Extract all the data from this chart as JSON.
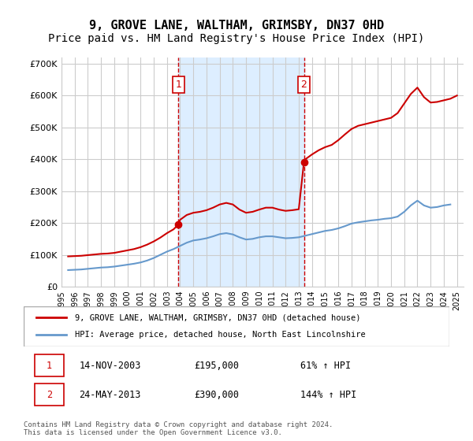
{
  "title": "9, GROVE LANE, WALTHAM, GRIMSBY, DN37 0HD",
  "subtitle": "Price paid vs. HM Land Registry's House Price Index (HPI)",
  "title_fontsize": 11,
  "subtitle_fontsize": 10,
  "background_color": "#ffffff",
  "plot_bg_color": "#ffffff",
  "grid_color": "#cccccc",
  "red_color": "#cc0000",
  "blue_color": "#6699cc",
  "shaded_color": "#ddeeff",
  "purchase1_x": 2003.87,
  "purchase1_y": 195000,
  "purchase2_x": 2013.39,
  "purchase2_y": 390000,
  "legend_label_red": "9, GROVE LANE, WALTHAM, GRIMSBY, DN37 0HD (detached house)",
  "legend_label_blue": "HPI: Average price, detached house, North East Lincolnshire",
  "table_row1": [
    "1",
    "14-NOV-2003",
    "£195,000",
    "61% ↑ HPI"
  ],
  "table_row2": [
    "2",
    "24-MAY-2013",
    "£390,000",
    "144% ↑ HPI"
  ],
  "footnote": "Contains HM Land Registry data © Crown copyright and database right 2024.\nThis data is licensed under the Open Government Licence v3.0.",
  "xlim": [
    1995,
    2025.5
  ],
  "ylim": [
    0,
    720000
  ],
  "yticks": [
    0,
    100000,
    200000,
    300000,
    400000,
    500000,
    600000,
    700000
  ],
  "ytick_labels": [
    "£0",
    "£100K",
    "£200K",
    "£300K",
    "£400K",
    "£500K",
    "£600K",
    "£700K"
  ],
  "hpi_data": {
    "years": [
      1995.5,
      1996.0,
      1996.5,
      1997.0,
      1997.5,
      1998.0,
      1998.5,
      1999.0,
      1999.5,
      2000.0,
      2000.5,
      2001.0,
      2001.5,
      2002.0,
      2002.5,
      2003.0,
      2003.5,
      2004.0,
      2004.5,
      2005.0,
      2005.5,
      2006.0,
      2006.5,
      2007.0,
      2007.5,
      2008.0,
      2008.5,
      2009.0,
      2009.5,
      2010.0,
      2010.5,
      2011.0,
      2011.5,
      2012.0,
      2012.5,
      2013.0,
      2013.5,
      2014.0,
      2014.5,
      2015.0,
      2015.5,
      2016.0,
      2016.5,
      2017.0,
      2017.5,
      2018.0,
      2018.5,
      2019.0,
      2019.5,
      2020.0,
      2020.5,
      2021.0,
      2021.5,
      2022.0,
      2022.5,
      2023.0,
      2023.5,
      2024.0,
      2024.5
    ],
    "values": [
      52000,
      53000,
      54000,
      56000,
      58000,
      60000,
      61000,
      63000,
      66000,
      69000,
      72000,
      76000,
      82000,
      90000,
      100000,
      110000,
      118000,
      128000,
      138000,
      145000,
      148000,
      152000,
      158000,
      165000,
      168000,
      164000,
      155000,
      148000,
      150000,
      155000,
      158000,
      158000,
      155000,
      152000,
      153000,
      155000,
      160000,
      165000,
      170000,
      175000,
      178000,
      183000,
      190000,
      198000,
      202000,
      205000,
      208000,
      210000,
      213000,
      215000,
      220000,
      235000,
      255000,
      270000,
      255000,
      248000,
      250000,
      255000,
      258000
    ]
  },
  "property_data": {
    "years": [
      1995.5,
      1996.0,
      1996.5,
      1997.0,
      1997.5,
      1998.0,
      1998.5,
      1999.0,
      1999.5,
      2000.0,
      2000.5,
      2001.0,
      2001.5,
      2002.0,
      2002.5,
      2003.0,
      2003.5,
      2003.87,
      2004.0,
      2004.5,
      2005.0,
      2005.5,
      2006.0,
      2006.5,
      2007.0,
      2007.5,
      2008.0,
      2008.5,
      2009.0,
      2009.5,
      2010.0,
      2010.5,
      2011.0,
      2011.5,
      2012.0,
      2012.5,
      2013.0,
      2013.39,
      2013.5,
      2014.0,
      2014.5,
      2015.0,
      2015.5,
      2016.0,
      2016.5,
      2017.0,
      2017.5,
      2018.0,
      2018.5,
      2019.0,
      2019.5,
      2020.0,
      2020.5,
      2021.0,
      2021.5,
      2022.0,
      2022.5,
      2023.0,
      2023.5,
      2024.0,
      2024.5,
      2025.0
    ],
    "values": [
      95000,
      96000,
      97000,
      99000,
      101000,
      103000,
      104000,
      106000,
      110000,
      114000,
      118000,
      124000,
      132000,
      142000,
      154000,
      168000,
      180000,
      195000,
      210000,
      225000,
      232000,
      235000,
      240000,
      248000,
      258000,
      263000,
      258000,
      242000,
      232000,
      235000,
      242000,
      248000,
      248000,
      242000,
      238000,
      240000,
      243000,
      390000,
      400000,
      415000,
      428000,
      438000,
      445000,
      460000,
      478000,
      495000,
      505000,
      510000,
      515000,
      520000,
      525000,
      530000,
      545000,
      575000,
      605000,
      625000,
      595000,
      578000,
      580000,
      585000,
      590000,
      600000
    ]
  }
}
